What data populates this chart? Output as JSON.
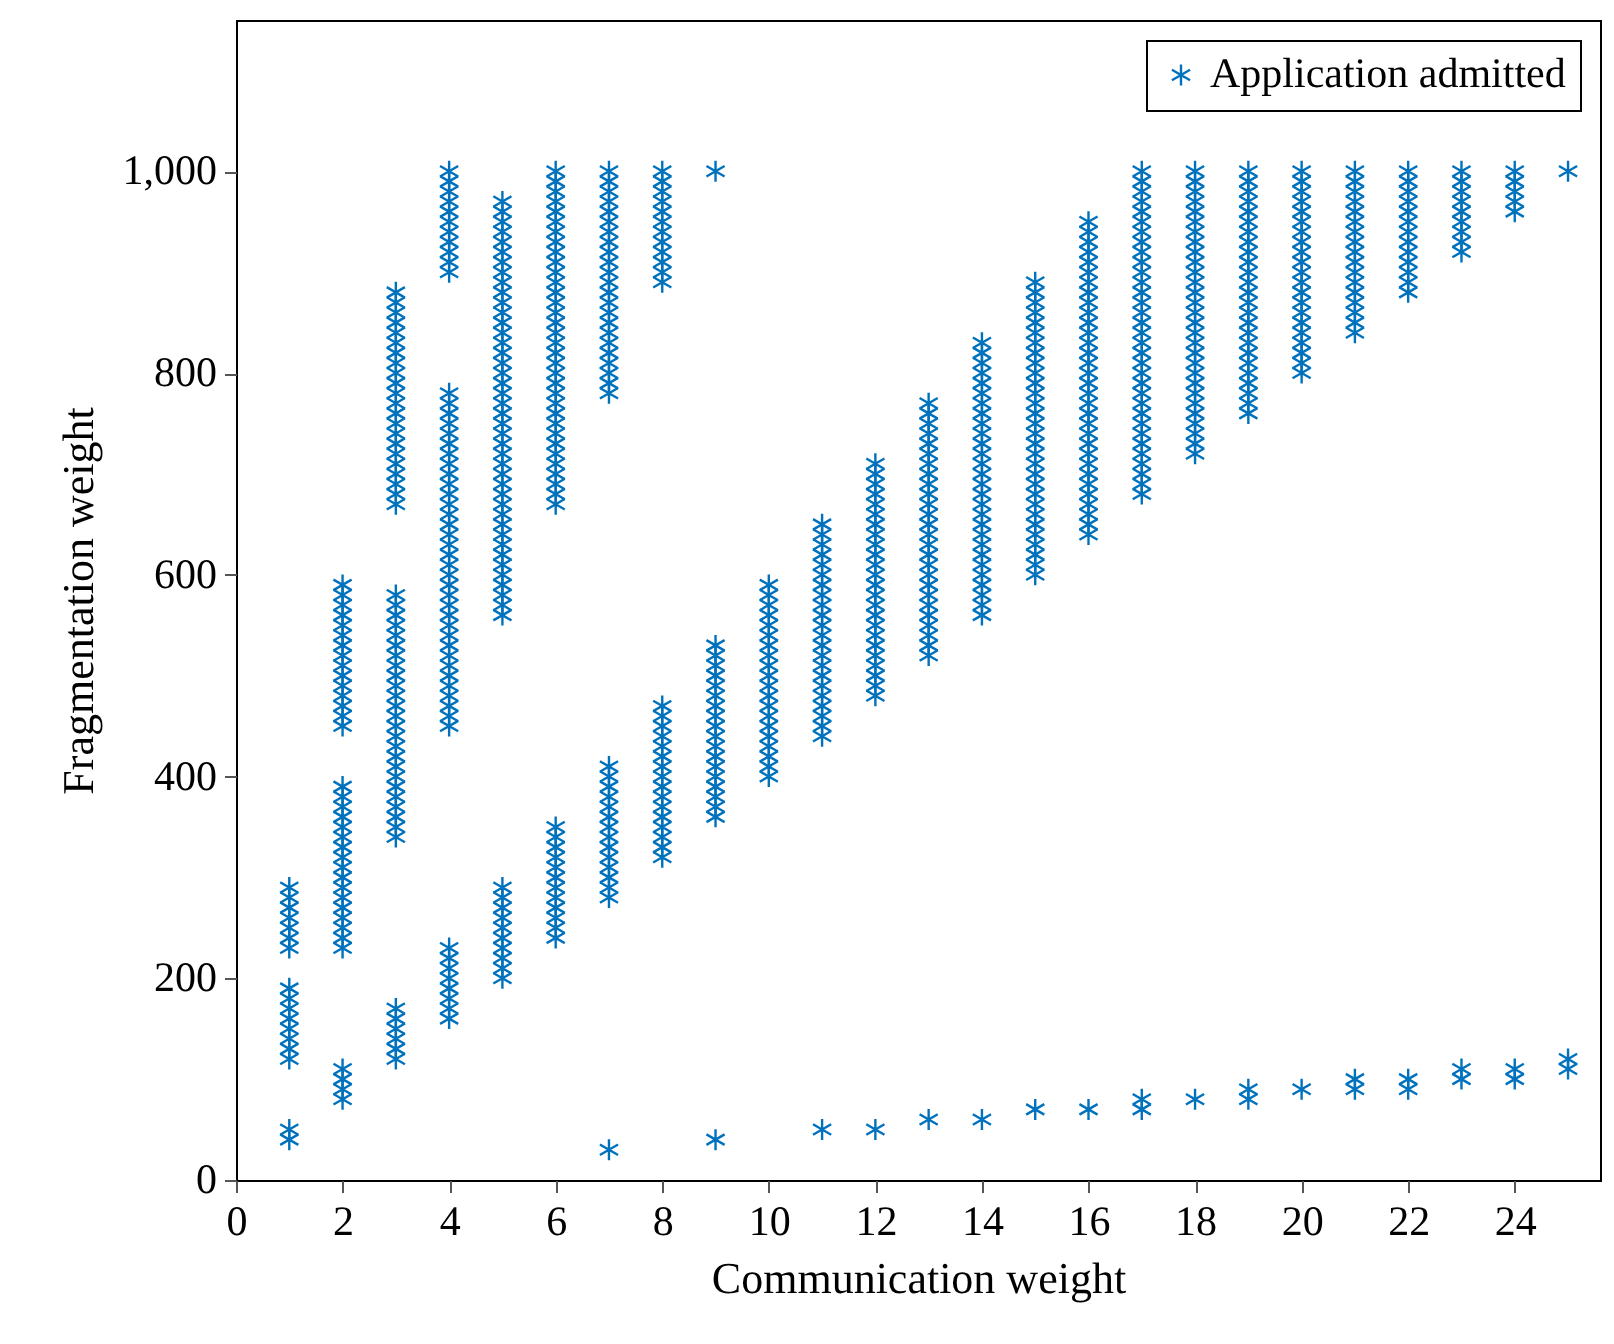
{
  "chart_data": {
    "type": "scatter",
    "xlabel": "Communication weight",
    "ylabel": "Fragmentation weight",
    "xlim": [
      0,
      25.6
    ],
    "ylim": [
      0,
      1150
    ],
    "xticks": [
      0,
      2,
      4,
      6,
      8,
      10,
      12,
      14,
      16,
      18,
      20,
      22,
      24
    ],
    "yticks": [
      0,
      200,
      400,
      600,
      800,
      {
        "value": 1000,
        "label": "1,000"
      }
    ],
    "grid": false,
    "legend": "top right",
    "marker": "cross",
    "series": [
      {
        "name": "Application admitted",
        "color": "#0072bd",
        "x": [
          1,
          1,
          1,
          1,
          1,
          1,
          1,
          1,
          1,
          1,
          1,
          1,
          1,
          1,
          1,
          1,
          1,
          2,
          2,
          2,
          2,
          2,
          2,
          2,
          2,
          2,
          2,
          2,
          2,
          2,
          2,
          2,
          2,
          2,
          2,
          2,
          2,
          2,
          2,
          2,
          2,
          2,
          2,
          2,
          2,
          2,
          2,
          2,
          2,
          2,
          2,
          2,
          2,
          3,
          3,
          3,
          3,
          3,
          3,
          3,
          3,
          3,
          3,
          3,
          3,
          3,
          3,
          3,
          3,
          3,
          3,
          3,
          3,
          3,
          3,
          3,
          3,
          3,
          3,
          3,
          3,
          3,
          3,
          3,
          3,
          3,
          3,
          3,
          3,
          3,
          3,
          3,
          3,
          3,
          3,
          3,
          3,
          3,
          3,
          3,
          3,
          3,
          3,
          3,
          3,
          3,
          4,
          4,
          4,
          4,
          4,
          4,
          4,
          4,
          4,
          4,
          4,
          4,
          4,
          4,
          4,
          4,
          4,
          4,
          4,
          4,
          4,
          4,
          4,
          4,
          4,
          4,
          4,
          4,
          4,
          4,
          4,
          4,
          4,
          4,
          4,
          4,
          4,
          4,
          4,
          4,
          4,
          4,
          4,
          4,
          4,
          4,
          4,
          4,
          4,
          4,
          4,
          4,
          4,
          5,
          5,
          5,
          5,
          5,
          5,
          5,
          5,
          5,
          5,
          5,
          5,
          5,
          5,
          5,
          5,
          5,
          5,
          5,
          5,
          5,
          5,
          5,
          5,
          5,
          5,
          5,
          5,
          5,
          5,
          5,
          5,
          5,
          5,
          5,
          5,
          5,
          5,
          5,
          5,
          5,
          5,
          5,
          5,
          5,
          5,
          5,
          5,
          5,
          5,
          5,
          5,
          6,
          6,
          6,
          6,
          6,
          6,
          6,
          6,
          6,
          6,
          6,
          6,
          6,
          6,
          6,
          6,
          6,
          6,
          6,
          6,
          6,
          6,
          6,
          6,
          6,
          6,
          6,
          6,
          6,
          6,
          6,
          6,
          6,
          6,
          6,
          6,
          6,
          6,
          6,
          6,
          6,
          6,
          6,
          6,
          6,
          6,
          7,
          7,
          7,
          7,
          7,
          7,
          7,
          7,
          7,
          7,
          7,
          7,
          7,
          7,
          7,
          7,
          7,
          7,
          7,
          7,
          7,
          7,
          7,
          7,
          7,
          7,
          7,
          7,
          7,
          7,
          7,
          7,
          7,
          7,
          7,
          7,
          7,
          7,
          8,
          8,
          8,
          8,
          8,
          8,
          8,
          8,
          8,
          8,
          8,
          8,
          8,
          8,
          8,
          8,
          8,
          8,
          8,
          8,
          8,
          8,
          8,
          8,
          8,
          8,
          8,
          8,
          9,
          9,
          9,
          9,
          9,
          9,
          9,
          9,
          9,
          9,
          9,
          9,
          9,
          9,
          9,
          9,
          9,
          9,
          9,
          9,
          10,
          10,
          10,
          10,
          10,
          10,
          10,
          10,
          10,
          10,
          10,
          10,
          10,
          10,
          10,
          10,
          10,
          10,
          10,
          10,
          11,
          11,
          11,
          11,
          11,
          11,
          11,
          11,
          11,
          11,
          11,
          11,
          11,
          11,
          11,
          11,
          11,
          11,
          11,
          11,
          11,
          11,
          11,
          12,
          12,
          12,
          12,
          12,
          12,
          12,
          12,
          12,
          12,
          12,
          12,
          12,
          12,
          12,
          12,
          12,
          12,
          12,
          12,
          12,
          12,
          12,
          12,
          12,
          13,
          13,
          13,
          13,
          13,
          13,
          13,
          13,
          13,
          13,
          13,
          13,
          13,
          13,
          13,
          13,
          13,
          13,
          13,
          13,
          13,
          13,
          13,
          13,
          13,
          13,
          13,
          14,
          14,
          14,
          14,
          14,
          14,
          14,
          14,
          14,
          14,
          14,
          14,
          14,
          14,
          14,
          14,
          14,
          14,
          14,
          14,
          14,
          14,
          14,
          14,
          14,
          14,
          14,
          14,
          14,
          15,
          15,
          15,
          15,
          15,
          15,
          15,
          15,
          15,
          15,
          15,
          15,
          15,
          15,
          15,
          15,
          15,
          15,
          15,
          15,
          15,
          15,
          15,
          15,
          15,
          15,
          15,
          15,
          15,
          15,
          15,
          16,
          16,
          16,
          16,
          16,
          16,
          16,
          16,
          16,
          16,
          16,
          16,
          16,
          16,
          16,
          16,
          16,
          16,
          16,
          16,
          16,
          16,
          16,
          16,
          16,
          16,
          16,
          16,
          16,
          16,
          16,
          16,
          16,
          17,
          17,
          17,
          17,
          17,
          17,
          17,
          17,
          17,
          17,
          17,
          17,
          17,
          17,
          17,
          17,
          17,
          17,
          17,
          17,
          17,
          17,
          17,
          17,
          17,
          17,
          17,
          17,
          17,
          17,
          17,
          17,
          17,
          17,
          17,
          18,
          18,
          18,
          18,
          18,
          18,
          18,
          18,
          18,
          18,
          18,
          18,
          18,
          18,
          18,
          18,
          18,
          18,
          18,
          18,
          18,
          18,
          18,
          18,
          18,
          18,
          18,
          18,
          18,
          18,
          19,
          19,
          19,
          19,
          19,
          19,
          19,
          19,
          19,
          19,
          19,
          19,
          19,
          19,
          19,
          19,
          19,
          19,
          19,
          19,
          19,
          19,
          19,
          19,
          19,
          19,
          19,
          20,
          20,
          20,
          20,
          20,
          20,
          20,
          20,
          20,
          20,
          20,
          20,
          20,
          20,
          20,
          20,
          20,
          20,
          20,
          20,
          20,
          20,
          21,
          21,
          21,
          21,
          21,
          21,
          21,
          21,
          21,
          21,
          21,
          21,
          21,
          21,
          21,
          21,
          21,
          21,
          21,
          22,
          22,
          22,
          22,
          22,
          22,
          22,
          22,
          22,
          22,
          22,
          22,
          22,
          22,
          22,
          23,
          23,
          23,
          23,
          23,
          23,
          23,
          23,
          23,
          23,
          23,
          24,
          24,
          24,
          24,
          24,
          24,
          24,
          25,
          25,
          25
        ],
        "values": [
          40,
          50,
          120,
          130,
          140,
          150,
          160,
          170,
          180,
          190,
          230,
          240,
          250,
          260,
          270,
          280,
          290,
          80,
          90,
          100,
          110,
          230,
          240,
          250,
          260,
          270,
          280,
          290,
          300,
          310,
          320,
          330,
          340,
          350,
          360,
          370,
          380,
          390,
          450,
          460,
          470,
          480,
          490,
          500,
          510,
          520,
          530,
          540,
          550,
          560,
          570,
          580,
          590,
          120,
          130,
          140,
          150,
          160,
          170,
          340,
          350,
          360,
          370,
          380,
          390,
          400,
          410,
          420,
          430,
          440,
          450,
          460,
          470,
          480,
          490,
          500,
          510,
          520,
          530,
          540,
          550,
          560,
          570,
          580,
          670,
          680,
          690,
          700,
          710,
          720,
          730,
          740,
          750,
          760,
          770,
          780,
          790,
          800,
          810,
          820,
          830,
          840,
          850,
          860,
          870,
          880,
          160,
          170,
          180,
          190,
          200,
          210,
          220,
          230,
          450,
          460,
          470,
          480,
          490,
          500,
          510,
          520,
          530,
          540,
          550,
          560,
          570,
          580,
          590,
          600,
          610,
          620,
          630,
          640,
          650,
          660,
          670,
          680,
          690,
          700,
          710,
          720,
          730,
          740,
          750,
          760,
          770,
          780,
          900,
          910,
          920,
          930,
          940,
          950,
          960,
          970,
          980,
          990,
          1000,
          200,
          210,
          220,
          230,
          240,
          250,
          260,
          270,
          280,
          290,
          560,
          570,
          580,
          590,
          600,
          610,
          620,
          630,
          640,
          650,
          660,
          670,
          680,
          690,
          700,
          710,
          720,
          730,
          740,
          750,
          760,
          770,
          780,
          790,
          800,
          810,
          820,
          830,
          840,
          850,
          860,
          870,
          880,
          890,
          900,
          910,
          920,
          930,
          940,
          950,
          960,
          970,
          240,
          250,
          260,
          270,
          280,
          290,
          300,
          310,
          320,
          330,
          340,
          350,
          670,
          680,
          690,
          700,
          710,
          720,
          730,
          740,
          750,
          760,
          770,
          780,
          790,
          800,
          810,
          820,
          830,
          840,
          850,
          860,
          870,
          880,
          890,
          900,
          910,
          920,
          930,
          940,
          950,
          960,
          970,
          980,
          990,
          1000,
          30,
          280,
          290,
          300,
          310,
          320,
          330,
          340,
          350,
          360,
          370,
          380,
          390,
          400,
          410,
          780,
          790,
          800,
          810,
          820,
          830,
          840,
          850,
          860,
          870,
          880,
          890,
          900,
          910,
          920,
          930,
          940,
          950,
          960,
          970,
          980,
          990,
          1000,
          320,
          330,
          340,
          350,
          360,
          370,
          380,
          390,
          400,
          410,
          420,
          430,
          440,
          450,
          460,
          470,
          890,
          900,
          910,
          920,
          930,
          940,
          950,
          960,
          970,
          980,
          990,
          1000,
          40,
          360,
          370,
          380,
          390,
          400,
          410,
          420,
          430,
          440,
          450,
          460,
          470,
          480,
          490,
          500,
          510,
          520,
          530,
          1000,
          400,
          410,
          420,
          430,
          440,
          450,
          460,
          470,
          480,
          490,
          500,
          510,
          520,
          530,
          540,
          550,
          560,
          570,
          580,
          590,
          50,
          440,
          450,
          460,
          470,
          480,
          490,
          500,
          510,
          520,
          530,
          540,
          550,
          560,
          570,
          580,
          590,
          600,
          610,
          620,
          630,
          640,
          650,
          50,
          480,
          490,
          500,
          510,
          520,
          530,
          540,
          550,
          560,
          570,
          580,
          590,
          600,
          610,
          620,
          630,
          640,
          650,
          660,
          670,
          680,
          690,
          700,
          710,
          60,
          520,
          530,
          540,
          550,
          560,
          570,
          580,
          590,
          600,
          610,
          620,
          630,
          640,
          650,
          660,
          670,
          680,
          690,
          700,
          710,
          720,
          730,
          740,
          750,
          760,
          770,
          60,
          560,
          570,
          580,
          590,
          600,
          610,
          620,
          630,
          640,
          650,
          660,
          670,
          680,
          690,
          700,
          710,
          720,
          730,
          740,
          750,
          760,
          770,
          780,
          790,
          800,
          810,
          820,
          830,
          70,
          600,
          610,
          620,
          630,
          640,
          650,
          660,
          670,
          680,
          690,
          700,
          710,
          720,
          730,
          740,
          750,
          760,
          770,
          780,
          790,
          800,
          810,
          820,
          830,
          840,
          850,
          860,
          870,
          880,
          890,
          70,
          640,
          650,
          660,
          670,
          680,
          690,
          700,
          710,
          720,
          730,
          740,
          750,
          760,
          770,
          780,
          790,
          800,
          810,
          820,
          830,
          840,
          850,
          860,
          870,
          880,
          890,
          900,
          910,
          920,
          930,
          940,
          950,
          70,
          80,
          680,
          690,
          700,
          710,
          720,
          730,
          740,
          750,
          760,
          770,
          780,
          790,
          800,
          810,
          820,
          830,
          840,
          850,
          860,
          870,
          880,
          890,
          900,
          910,
          920,
          930,
          940,
          950,
          960,
          970,
          980,
          990,
          1000,
          80,
          720,
          730,
          740,
          750,
          760,
          770,
          780,
          790,
          800,
          810,
          820,
          830,
          840,
          850,
          860,
          870,
          880,
          890,
          900,
          910,
          920,
          930,
          940,
          950,
          960,
          970,
          980,
          990,
          1000,
          80,
          90,
          760,
          770,
          780,
          790,
          800,
          810,
          820,
          830,
          840,
          850,
          860,
          870,
          880,
          890,
          900,
          910,
          920,
          930,
          940,
          950,
          960,
          970,
          980,
          990,
          1000,
          90,
          800,
          810,
          820,
          830,
          840,
          850,
          860,
          870,
          880,
          890,
          900,
          910,
          920,
          930,
          940,
          950,
          960,
          970,
          980,
          990,
          1000,
          90,
          100,
          840,
          850,
          860,
          870,
          880,
          890,
          900,
          910,
          920,
          930,
          940,
          950,
          960,
          970,
          980,
          990,
          1000,
          90,
          100,
          880,
          890,
          900,
          910,
          920,
          930,
          940,
          950,
          960,
          970,
          980,
          990,
          1000,
          100,
          110,
          920,
          930,
          940,
          950,
          960,
          970,
          980,
          990,
          1000,
          100,
          110,
          960,
          970,
          980,
          990,
          1000,
          110,
          120,
          1000
        ]
      }
    ]
  }
}
